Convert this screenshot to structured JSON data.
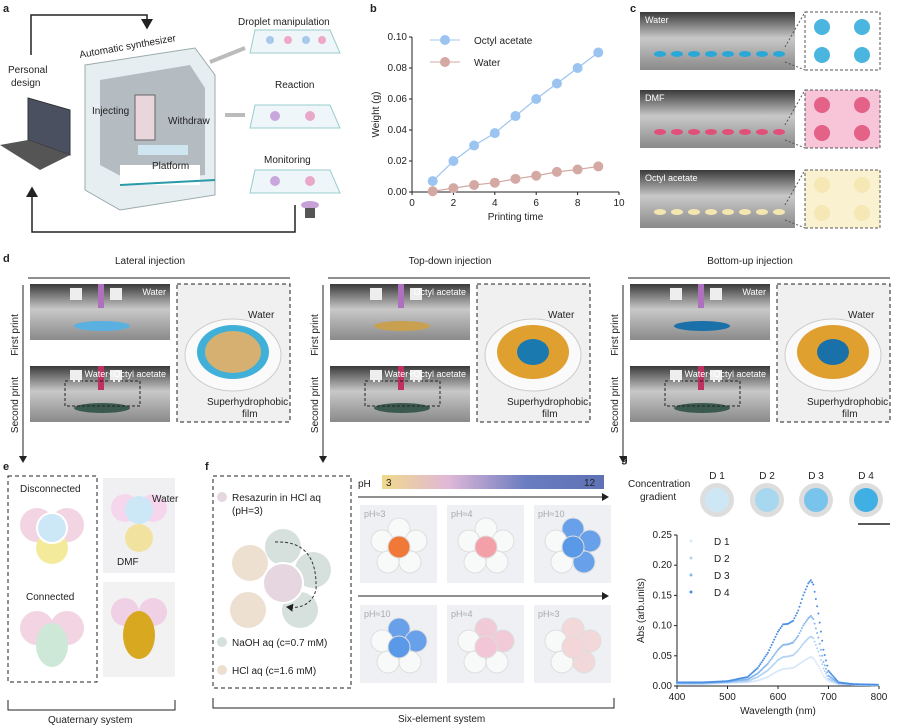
{
  "panels": {
    "a": {
      "label": "a",
      "personal_design": [
        "Personal",
        "design"
      ],
      "synthesizer": "Automatic synthesizer",
      "injecting": "Injecting",
      "withdraw": "Withdraw",
      "platform": "Platform",
      "droplet": "Droplet manipulation",
      "reaction": "Reaction",
      "monitoring": "Monitoring"
    },
    "b": {
      "label": "b"
    },
    "c": {
      "label": "c",
      "rows": [
        "Water",
        "DMF",
        "Octyl acetate"
      ]
    },
    "d": {
      "label": "d",
      "groups": [
        {
          "title": "Lateral injection",
          "top": "Water",
          "bottom": "Water+Octyl acetate",
          "inset_water": "Water",
          "inset_film": [
            "Superhydrophobic",
            "film"
          ]
        },
        {
          "title": "Top-down injection",
          "top": "Octyl acetate",
          "bottom": "Water+Octyl acetate",
          "inset_water": "Water",
          "inset_film": [
            "Superhydrophobic",
            "film"
          ]
        },
        {
          "title": "Bottom-up injection",
          "top": "Water",
          "bottom": "Water+Octyl acetate",
          "inset_water": "Water",
          "inset_film": [
            "Superhydrophobic",
            "film"
          ]
        }
      ],
      "first_print": "First print",
      "second_print": "Second print"
    },
    "e": {
      "label": "e",
      "disconnected": "Disconnected",
      "connected": "Connected",
      "water": "Water",
      "dmf": "DMF",
      "system": "Quaternary system"
    },
    "f": {
      "label": "f",
      "legend": [
        "Resazurin in HCl aq",
        "(pH=3)",
        "NaOH aq (c=0.7 mM)",
        "HCl aq (c=1.6 mM)"
      ],
      "ph": "pH",
      "ph_min": "3",
      "ph_max": "12",
      "row1": [
        "pH≈3",
        "pH≈4",
        "pH≈10"
      ],
      "row2": [
        "pH≈10",
        "pH≈4",
        "pH≈3"
      ],
      "system": "Six-element system",
      "colors": {
        "resazurin": "#e6d6e0",
        "naoh": "#d6e0dc",
        "hcl": "#eee0d0"
      }
    },
    "g": {
      "label": "g",
      "gradient": [
        "Concentration",
        "gradient"
      ],
      "drops": [
        "D 1",
        "D 2",
        "D 3",
        "D 4"
      ]
    }
  },
  "chart_data": [
    {
      "type": "scatter",
      "panel": "b",
      "xlabel": "Printing time",
      "ylabel": "Weight (g)",
      "xlim": [
        0,
        10
      ],
      "ylim": [
        0,
        0.1
      ],
      "xticks": [
        "0",
        "2",
        "4",
        "6",
        "8",
        "10"
      ],
      "yticks": [
        "0.00",
        "0.02",
        "0.04",
        "0.06",
        "0.08",
        "0.10"
      ],
      "legend": "top-left",
      "grid": false,
      "x": [
        1,
        2,
        3,
        4,
        5,
        6,
        7,
        8,
        9
      ],
      "series": [
        {
          "name": "Octyl acetate",
          "color": "#9cc4f0",
          "values": [
            0.007,
            0.02,
            0.03,
            0.038,
            0.049,
            0.06,
            0.07,
            0.08,
            0.09
          ]
        },
        {
          "name": "Water",
          "color": "#d4a9a4",
          "values": [
            0.0005,
            0.0025,
            0.0045,
            0.006,
            0.0085,
            0.0105,
            0.013,
            0.0145,
            0.0165
          ]
        }
      ]
    },
    {
      "type": "scatter",
      "panel": "g",
      "xlabel": "Wavelength (nm)",
      "ylabel": "Abs (arb.units)",
      "xlim": [
        400,
        800
      ],
      "ylim": [
        0,
        0.25
      ],
      "xticks": [
        "400",
        "500",
        "600",
        "700",
        "800"
      ],
      "yticks": [
        "0.00",
        "0.05",
        "0.10",
        "0.15",
        "0.20",
        "0.25"
      ],
      "legend": "top-left",
      "grid": false,
      "x": [
        400,
        450,
        500,
        540,
        560,
        580,
        600,
        610,
        620,
        630,
        640,
        650,
        660,
        665,
        670,
        680,
        690,
        700,
        720,
        750,
        800
      ],
      "series": [
        {
          "name": "D 1",
          "color": "#d8e8fa",
          "values": [
            0.003,
            0.003,
            0.005,
            0.006,
            0.009,
            0.015,
            0.025,
            0.028,
            0.029,
            0.03,
            0.035,
            0.041,
            0.046,
            0.048,
            0.046,
            0.033,
            0.017,
            0.008,
            0.003,
            0.002,
            0.001
          ]
        },
        {
          "name": "D 2",
          "color": "#b4d2f4",
          "values": [
            0.004,
            0.004,
            0.006,
            0.008,
            0.015,
            0.026,
            0.043,
            0.048,
            0.049,
            0.051,
            0.059,
            0.07,
            0.079,
            0.082,
            0.079,
            0.057,
            0.029,
            0.012,
            0.004,
            0.002,
            0.001
          ]
        },
        {
          "name": "D 3",
          "color": "#86b6ee",
          "values": [
            0.005,
            0.005,
            0.007,
            0.011,
            0.021,
            0.037,
            0.06,
            0.068,
            0.069,
            0.072,
            0.083,
            0.1,
            0.112,
            0.116,
            0.111,
            0.08,
            0.04,
            0.017,
            0.005,
            0.003,
            0.002
          ]
        },
        {
          "name": "D 4",
          "color": "#4a8fe4",
          "values": [
            0.006,
            0.006,
            0.008,
            0.015,
            0.03,
            0.055,
            0.09,
            0.102,
            0.103,
            0.108,
            0.125,
            0.15,
            0.17,
            0.175,
            0.168,
            0.12,
            0.06,
            0.025,
            0.006,
            0.003,
            0.002
          ]
        }
      ]
    }
  ]
}
